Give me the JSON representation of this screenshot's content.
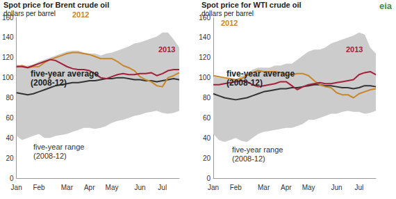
{
  "chart_data": [
    {
      "type": "line",
      "title": "Spot price for Brent crude oil",
      "subtitle": "dollars per barrel",
      "categories": [
        "Jan",
        null,
        null,
        null,
        "Feb",
        null,
        null,
        null,
        null,
        "Mar",
        null,
        null,
        null,
        "Apr",
        null,
        null,
        null,
        "May",
        null,
        null,
        null,
        null,
        "Jun",
        null,
        null,
        null,
        "Jul",
        null,
        null,
        null
      ],
      "ylim": [
        0,
        160
      ],
      "yticks": [
        0,
        20,
        40,
        60,
        80,
        100,
        120,
        140,
        160
      ],
      "grid": false,
      "series": [
        {
          "name": "five-year range (2008-12)",
          "type": "area_range",
          "color": "#cccccc",
          "low": [
            42,
            38,
            40,
            42,
            44,
            40,
            40,
            42,
            43,
            44,
            46,
            48,
            50,
            50,
            49,
            50,
            52,
            55,
            57,
            58,
            60,
            62,
            63,
            65,
            66,
            67,
            65,
            64,
            65,
            67
          ],
          "high": [
            113,
            112,
            112,
            113,
            116,
            118,
            120,
            122,
            124,
            126,
            127,
            127,
            125,
            124,
            124,
            122,
            124,
            125,
            127,
            129,
            131,
            134,
            135,
            137,
            139,
            141,
            145,
            145,
            138,
            130
          ]
        },
        {
          "name": "five-year average (2008-12)",
          "color": "#333333",
          "values": [
            85,
            84,
            83,
            84,
            86,
            88,
            90,
            92,
            93,
            94,
            95,
            95,
            96,
            97,
            97,
            98,
            99,
            99,
            100,
            100,
            99,
            98,
            98,
            97,
            97,
            96,
            97,
            98,
            99,
            98
          ]
        },
        {
          "name": "2012",
          "color": "#c8862a",
          "values": [
            111,
            112,
            110,
            111,
            111,
            115,
            118,
            120,
            122,
            124,
            125,
            125,
            124,
            123,
            121,
            119,
            119,
            119,
            116,
            112,
            110,
            107,
            101,
            98,
            96,
            92,
            91,
            100,
            102,
            105
          ]
        },
        {
          "name": "2013",
          "color": "#a3203a",
          "values": [
            111,
            111,
            110,
            112,
            114,
            116,
            118,
            117,
            114,
            111,
            109,
            108,
            108,
            107,
            104,
            100,
            99,
            101,
            103,
            104,
            103,
            103,
            104,
            104,
            105,
            102,
            104,
            107,
            108,
            108
          ]
        }
      ]
    },
    {
      "type": "line",
      "title": "Spot price for WTI crude oil",
      "subtitle": "dollars per barrel",
      "categories": [
        "Jan",
        null,
        null,
        null,
        "Feb",
        null,
        null,
        null,
        null,
        "Mar",
        null,
        null,
        null,
        "Apr",
        null,
        null,
        null,
        "May",
        null,
        null,
        null,
        null,
        "Jun",
        null,
        null,
        null,
        "Jul",
        null,
        null,
        null
      ],
      "ylim": [
        0,
        160
      ],
      "yticks": [
        0,
        20,
        40,
        60,
        80,
        100,
        120,
        140,
        160
      ],
      "grid": false,
      "series": [
        {
          "name": "five-year range (2008-12)",
          "type": "area_range",
          "color": "#cccccc",
          "low": [
            44,
            38,
            36,
            38,
            40,
            37,
            36,
            40,
            44,
            46,
            47,
            48,
            49,
            50,
            50,
            52,
            54,
            58,
            58,
            60,
            62,
            64,
            64,
            66,
            67,
            66,
            66,
            64,
            65,
            67
          ],
          "high": [
            101,
            100,
            100,
            100,
            98,
            102,
            104,
            108,
            110,
            110,
            110,
            112,
            112,
            114,
            114,
            118,
            122,
            126,
            128,
            128,
            130,
            134,
            136,
            138,
            140,
            142,
            145,
            143,
            130,
            124
          ]
        },
        {
          "name": "five-year average (2008-12)",
          "color": "#333333",
          "values": [
            84,
            82,
            80,
            79,
            78,
            79,
            80,
            82,
            84,
            86,
            87,
            88,
            89,
            89,
            90,
            90,
            91,
            92,
            93,
            93,
            92,
            92,
            91,
            90,
            90,
            89,
            90,
            92,
            92,
            91
          ]
        },
        {
          "name": "2012",
          "color": "#c8862a",
          "values": [
            102,
            101,
            100,
            99,
            98,
            99,
            102,
            105,
            107,
            106,
            106,
            106,
            105,
            103,
            103,
            104,
            104,
            102,
            97,
            93,
            91,
            90,
            85,
            83,
            83,
            80,
            84,
            86,
            88,
            89
          ]
        },
        {
          "name": "2013",
          "color": "#a3203a",
          "values": [
            93,
            93,
            94,
            95,
            96,
            97,
            96,
            93,
            91,
            92,
            93,
            94,
            96,
            96,
            92,
            88,
            91,
            93,
            94,
            95,
            94,
            94,
            95,
            96,
            97,
            98,
            103,
            105,
            106,
            103
          ]
        }
      ]
    }
  ],
  "logo": "eia"
}
